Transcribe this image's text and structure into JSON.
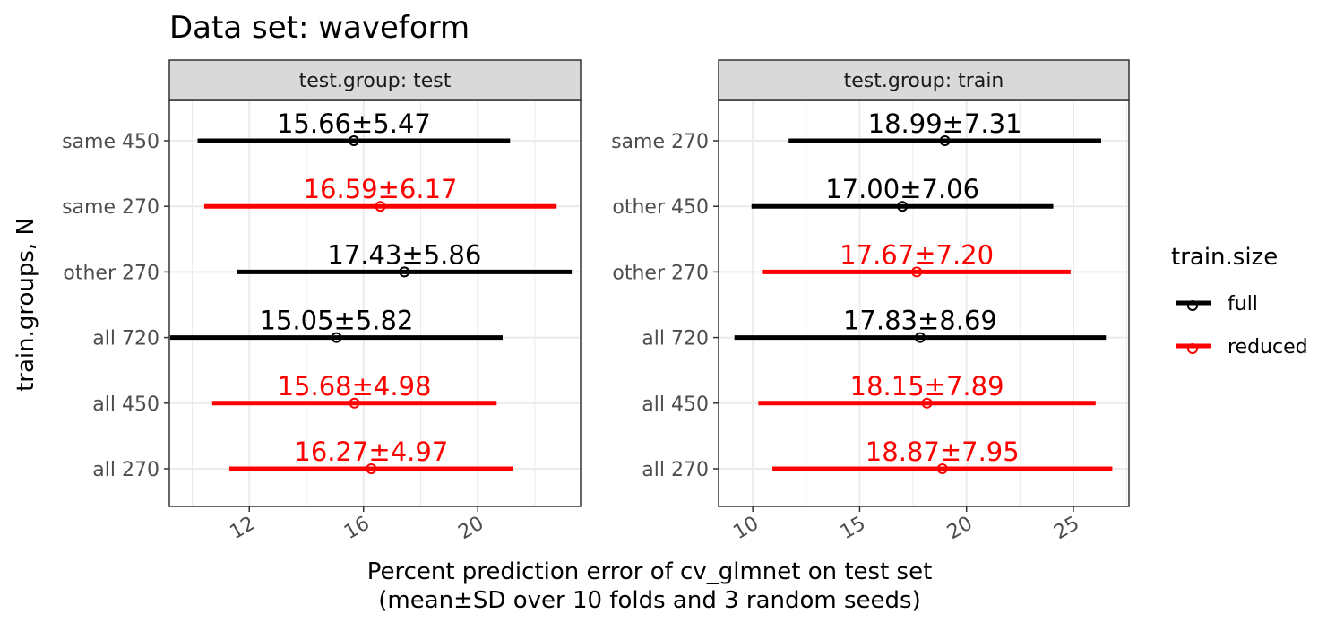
{
  "chart_data": {
    "type": "errorbar",
    "title": "Data set: waveform",
    "xlabel_line1": "Percent prediction error of cv_glmnet on test set",
    "xlabel_line2": "(mean±SD over 10 folds and 3 random seeds)",
    "ylabel": "train.groups, N",
    "legend": {
      "title": "train.size",
      "position": "right",
      "entries": [
        {
          "label": "full",
          "color": "#000000"
        },
        {
          "label": "reduced",
          "color": "#ff0000"
        }
      ]
    },
    "colors": {
      "full": "#000000",
      "reduced": "#ff0000",
      "grid": "#ebebeb",
      "strip_fill": "#d9d9d9"
    },
    "grid": true,
    "panels": [
      {
        "strip": "test.group: test",
        "xlim": [
          9.2,
          23.6
        ],
        "xticks": [
          12,
          16,
          20
        ],
        "xtick_labels": [
          "12",
          "16",
          "20"
        ],
        "rows": [
          {
            "category": "same 450",
            "size": "full",
            "mean": 15.66,
            "sd": 5.47,
            "label": "15.66±5.47"
          },
          {
            "category": "same 270",
            "size": "reduced",
            "mean": 16.59,
            "sd": 6.17,
            "label": "16.59±6.17"
          },
          {
            "category": "other 270",
            "size": "full",
            "mean": 17.43,
            "sd": 5.86,
            "label": "17.43±5.86"
          },
          {
            "category": "all 720",
            "size": "full",
            "mean": 15.05,
            "sd": 5.82,
            "label": "15.05±5.82"
          },
          {
            "category": "all 450",
            "size": "reduced",
            "mean": 15.68,
            "sd": 4.98,
            "label": "15.68±4.98"
          },
          {
            "category": "all 270",
            "size": "reduced",
            "mean": 16.27,
            "sd": 4.97,
            "label": "16.27±4.97"
          }
        ]
      },
      {
        "strip": "test.group: train",
        "xlim": [
          8.4,
          27.6
        ],
        "xticks": [
          10,
          15,
          20,
          25
        ],
        "xtick_labels": [
          "10",
          "15",
          "20",
          "25"
        ],
        "rows": [
          {
            "category": "same 270",
            "size": "full",
            "mean": 18.99,
            "sd": 7.31,
            "label": "18.99±7.31"
          },
          {
            "category": "other 450",
            "size": "full",
            "mean": 17.0,
            "sd": 7.06,
            "label": "17.00±7.06"
          },
          {
            "category": "other 270",
            "size": "reduced",
            "mean": 17.67,
            "sd": 7.2,
            "label": "17.67±7.20"
          },
          {
            "category": "all 720",
            "size": "full",
            "mean": 17.83,
            "sd": 8.69,
            "label": "17.83±8.69"
          },
          {
            "category": "all 450",
            "size": "reduced",
            "mean": 18.15,
            "sd": 7.89,
            "label": "18.15±7.89"
          },
          {
            "category": "all 270",
            "size": "reduced",
            "mean": 18.87,
            "sd": 7.95,
            "label": "18.87±7.95"
          }
        ]
      }
    ]
  }
}
